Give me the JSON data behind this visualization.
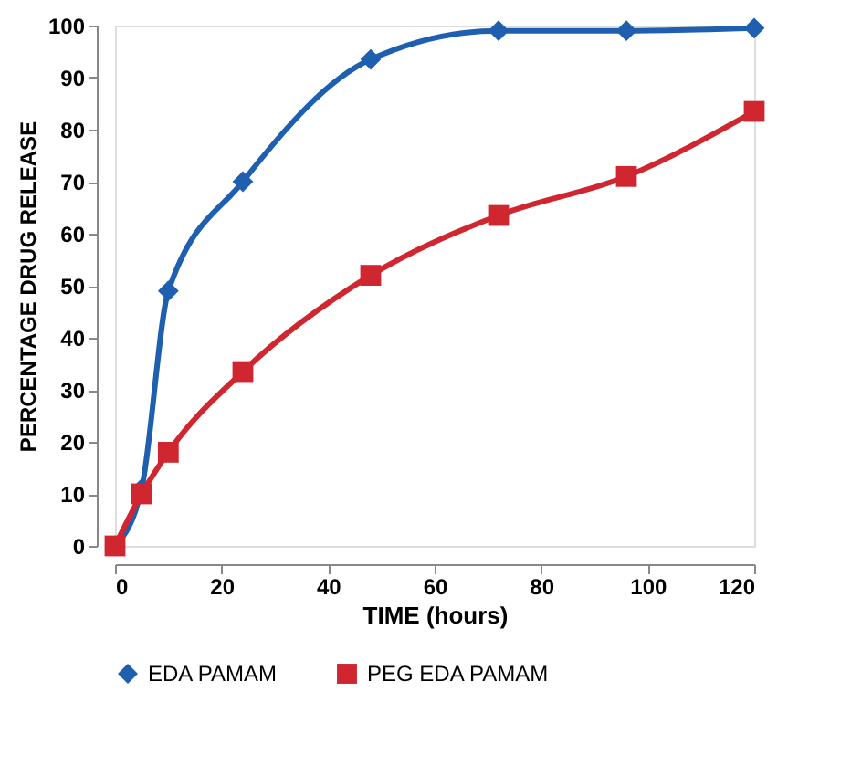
{
  "chart_data": {
    "type": "line",
    "xlabel": "TIME (hours)",
    "ylabel": "PERCENTAGE DRUG RELEASE",
    "x": [
      0,
      5,
      10,
      24,
      48,
      72,
      96,
      120
    ],
    "series": [
      {
        "name": "EDA PAMAM",
        "color": "#1f5fb0",
        "marker": "diamond",
        "values": [
          0,
          11,
          49,
          70,
          93.5,
          99,
          99,
          99.5
        ]
      },
      {
        "name": "PEG EDA PAMAM",
        "color": "#d0262f",
        "marker": "square",
        "values": [
          0,
          10,
          18,
          33.5,
          52,
          63.5,
          71,
          83.5
        ]
      }
    ],
    "xlim": [
      0,
      120
    ],
    "xticks": [
      0,
      20,
      40,
      60,
      80,
      100,
      120
    ],
    "ylim": [
      0,
      100
    ],
    "yticks": [
      0,
      10,
      20,
      30,
      40,
      50,
      60,
      70,
      80,
      90,
      100
    ],
    "grid": false,
    "legend": "bottom",
    "line_style": "solid"
  }
}
